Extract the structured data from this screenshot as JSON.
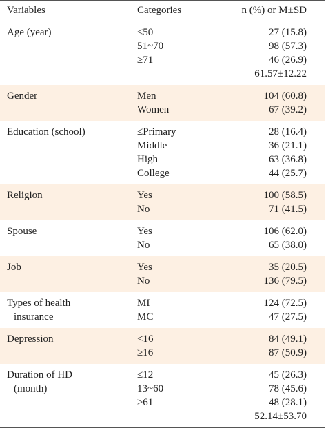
{
  "header": [
    "Variables",
    "Categories",
    "n (%) or M±SD"
  ],
  "groups": [
    {
      "variable": [
        "Age (year)"
      ],
      "rows": [
        [
          "≤50",
          "27 (15.8)"
        ],
        [
          "51~70",
          "98 (57.3)"
        ],
        [
          "≥71",
          "46 (26.9)"
        ],
        [
          null,
          "61.57±12.22"
        ]
      ]
    },
    {
      "variable": [
        "Gender"
      ],
      "rows": [
        [
          "Men",
          "104 (60.8)"
        ],
        [
          "Women",
          "67 (39.2)"
        ]
      ]
    },
    {
      "variable": [
        "Education (school)"
      ],
      "rows": [
        [
          "≤Primary",
          "28 (16.4)"
        ],
        [
          "Middle",
          "36 (21.1)"
        ],
        [
          "High",
          "63 (36.8)"
        ],
        [
          "College",
          "44 (25.7)"
        ]
      ]
    },
    {
      "variable": [
        "Religion"
      ],
      "rows": [
        [
          "Yes",
          "100 (58.5)"
        ],
        [
          "No",
          "71 (41.5)"
        ]
      ]
    },
    {
      "variable": [
        "Spouse"
      ],
      "rows": [
        [
          "Yes",
          "106 (62.0)"
        ],
        [
          "No",
          "65 (38.0)"
        ]
      ]
    },
    {
      "variable": [
        "Job"
      ],
      "rows": [
        [
          "Yes",
          "35 (20.5)"
        ],
        [
          "No",
          "136 (79.5)"
        ]
      ]
    },
    {
      "variable": [
        "Types of health",
        "insurance"
      ],
      "rows": [
        [
          "MI",
          "124 (72.5)"
        ],
        [
          "MC",
          "47 (27.5)"
        ]
      ]
    },
    {
      "variable": [
        "Depression"
      ],
      "rows": [
        [
          "<16",
          "84 (49.1)"
        ],
        [
          "≥16",
          "87 (50.9)"
        ]
      ]
    },
    {
      "variable": [
        "Duration of HD",
        "(month)"
      ],
      "rows": [
        [
          "≤12",
          "45 (26.3)"
        ],
        [
          "13~60",
          "78 (45.6)"
        ],
        [
          "≥61",
          "48 (28.1)"
        ],
        [
          null,
          "52.14±53.70"
        ]
      ]
    }
  ]
}
